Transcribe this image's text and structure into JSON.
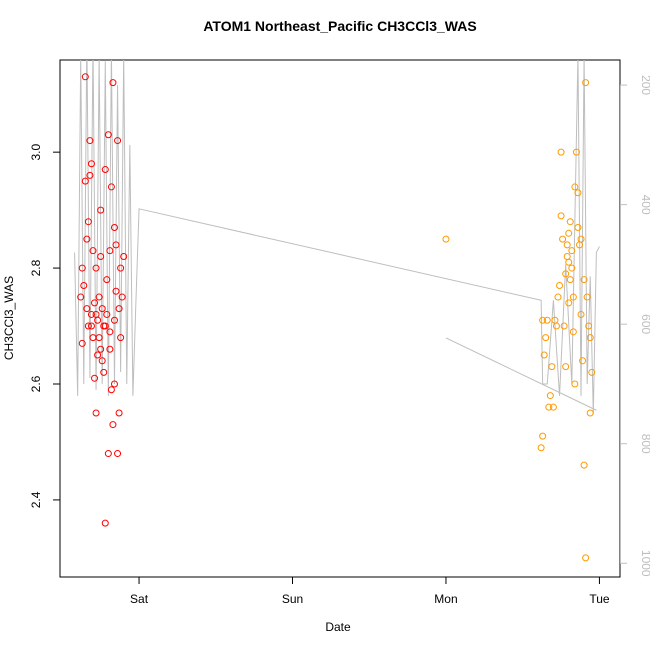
{
  "chart_data": {
    "type": "scatter",
    "title": "ATOM1 Northeast_Pacific CH3CCl3_WAS",
    "x_label": "Date",
    "y_label": "CH3CCl3_WAS",
    "xlim": [
      -0.515,
      3.134
    ],
    "xticks": [
      {
        "value": 0,
        "label": "Sat"
      },
      {
        "value": 1,
        "label": "Sun"
      },
      {
        "value": 2,
        "label": "Mon"
      },
      {
        "value": 3,
        "label": "Tue"
      }
    ],
    "ylim": [
      2.267,
      3.159
    ],
    "yticks": [
      {
        "value": 2.4,
        "label": "2.4"
      },
      {
        "value": 2.6,
        "label": "2.6"
      },
      {
        "value": 2.8,
        "label": "2.8"
      },
      {
        "value": 3.0,
        "label": "3.0"
      }
    ],
    "y2lim": [
      1023,
      158
    ],
    "y2ticks": [
      200,
      400,
      600,
      800,
      1000
    ],
    "y2color": "#bebebe",
    "series": [
      {
        "mode": "lines",
        "axis": "y2",
        "color": "#bebebe",
        "x": [
          -0.42,
          -0.4,
          -0.38,
          -0.36,
          -0.34,
          -0.32,
          -0.3,
          -0.28,
          -0.26,
          -0.24,
          -0.22,
          -0.2,
          -0.18,
          -0.16,
          -0.14,
          -0.12,
          -0.1,
          -0.08,
          -0.06,
          -0.04,
          -0.02,
          0.0,
          2.62,
          2.63,
          2.66,
          2.7,
          2.74,
          2.78,
          2.82,
          2.86,
          2.88,
          2.9,
          2.92,
          2.94,
          2.96,
          2.98,
          3.0,
          2.5,
          2.0,
          2.98
        ],
        "values": [
          480,
          720,
          150,
          700,
          120,
          690,
          130,
          710,
          150,
          700,
          160,
          720,
          140,
          700,
          200,
          680,
          150,
          700,
          300,
          720,
          560,
          407,
          560,
          700,
          700,
          560,
          720,
          500,
          700,
          150,
          720,
          150,
          700,
          520,
          750,
          480,
          470,
          null,
          623,
          744
        ]
      },
      {
        "mode": "points",
        "color": "#ff0000",
        "x": [
          -0.38,
          -0.37,
          -0.37,
          -0.36,
          -0.35,
          -0.35,
          -0.34,
          -0.34,
          -0.33,
          -0.33,
          -0.32,
          -0.32,
          -0.31,
          -0.31,
          -0.3,
          -0.3,
          -0.29,
          -0.29,
          -0.28,
          -0.28,
          -0.27,
          -0.27,
          -0.26,
          -0.26,
          -0.25,
          -0.25,
          -0.24,
          -0.24,
          -0.23,
          -0.23,
          -0.22,
          -0.22,
          -0.21,
          -0.21,
          -0.2,
          -0.2,
          -0.19,
          -0.19,
          -0.18,
          -0.18,
          -0.17,
          -0.17,
          -0.16,
          -0.16,
          -0.15,
          -0.15,
          -0.14,
          -0.14,
          -0.13,
          -0.13,
          -0.12,
          -0.12,
          -0.11,
          -0.1,
          -0.25,
          -0.28,
          -0.31,
          -0.22,
          -0.19,
          -0.16
        ],
        "values": [
          2.75,
          2.8,
          2.67,
          2.77,
          3.13,
          2.95,
          2.73,
          2.85,
          2.7,
          2.88,
          2.96,
          3.02,
          2.98,
          2.72,
          2.83,
          2.68,
          2.74,
          2.61,
          2.55,
          2.8,
          2.65,
          2.71,
          2.75,
          2.68,
          2.82,
          2.66,
          2.73,
          2.64,
          2.7,
          2.62,
          2.36,
          2.97,
          2.72,
          2.78,
          2.48,
          3.03,
          2.69,
          2.83,
          2.59,
          2.94,
          2.53,
          3.12,
          2.87,
          2.71,
          2.76,
          2.84,
          3.02,
          2.48,
          2.55,
          2.73,
          2.68,
          2.8,
          2.75,
          2.82,
          2.9,
          2.72,
          2.7,
          2.7,
          2.66,
          2.6
        ]
      },
      {
        "mode": "points",
        "color": "#ff9a00",
        "x": [
          2.0,
          2.62,
          2.63,
          2.63,
          2.64,
          2.65,
          2.66,
          2.67,
          2.68,
          2.69,
          2.7,
          2.71,
          2.72,
          2.73,
          2.74,
          2.75,
          2.75,
          2.76,
          2.77,
          2.78,
          2.78,
          2.79,
          2.8,
          2.8,
          2.81,
          2.81,
          2.82,
          2.82,
          2.83,
          2.83,
          2.84,
          2.85,
          2.86,
          2.86,
          2.87,
          2.88,
          2.88,
          2.89,
          2.9,
          2.9,
          2.91,
          2.91,
          2.92,
          2.93,
          2.94,
          2.94,
          2.95,
          2.84,
          2.8,
          2.79
        ],
        "values": [
          2.85,
          2.49,
          2.51,
          2.71,
          2.65,
          2.68,
          2.71,
          2.56,
          2.58,
          2.63,
          2.56,
          2.71,
          2.7,
          2.75,
          2.77,
          3.0,
          2.89,
          2.85,
          2.7,
          2.79,
          2.63,
          2.84,
          2.81,
          2.86,
          2.78,
          2.88,
          2.8,
          2.83,
          2.75,
          2.69,
          2.6,
          3.0,
          2.93,
          2.87,
          2.84,
          2.72,
          2.85,
          2.64,
          2.78,
          2.46,
          2.3,
          3.12,
          2.75,
          2.7,
          2.55,
          2.68,
          2.62,
          2.94,
          2.74,
          2.82
        ]
      }
    ]
  }
}
